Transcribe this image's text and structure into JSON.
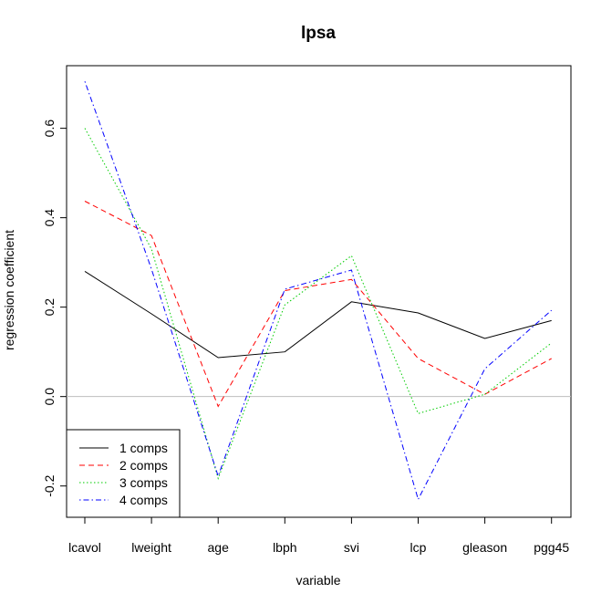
{
  "chart_data": {
    "type": "line",
    "title": "lpsa",
    "xlabel": "variable",
    "ylabel": "regression coefficient",
    "categories": [
      "lcavol",
      "lweight",
      "age",
      "lbph",
      "svi",
      "lcp",
      "gleason",
      "pgg45"
    ],
    "yticks": [
      "-0.2",
      "0.0",
      "0.2",
      "0.4",
      "0.6"
    ],
    "ylim": [
      -0.27,
      0.74
    ],
    "reference_line": 0,
    "legend_position": "bottom-left",
    "series": [
      {
        "name": "1 comps",
        "color": "#000000",
        "dash": "solid",
        "values": [
          0.28,
          0.185,
          0.087,
          0.1,
          0.212,
          0.187,
          0.13,
          0.17
        ]
      },
      {
        "name": "2 comps",
        "color": "#ff0000",
        "dash": "dashed",
        "values": [
          0.437,
          0.36,
          -0.022,
          0.237,
          0.262,
          0.085,
          0.005,
          0.085
        ]
      },
      {
        "name": "3 comps",
        "color": "#00cc00",
        "dash": "dotted",
        "values": [
          0.6,
          0.33,
          -0.183,
          0.205,
          0.315,
          -0.038,
          0.005,
          0.12
        ]
      },
      {
        "name": "4 comps",
        "color": "#0000ff",
        "dash": "dotdash",
        "values": [
          0.705,
          0.285,
          -0.178,
          0.24,
          0.283,
          -0.23,
          0.062,
          0.193
        ]
      }
    ]
  }
}
